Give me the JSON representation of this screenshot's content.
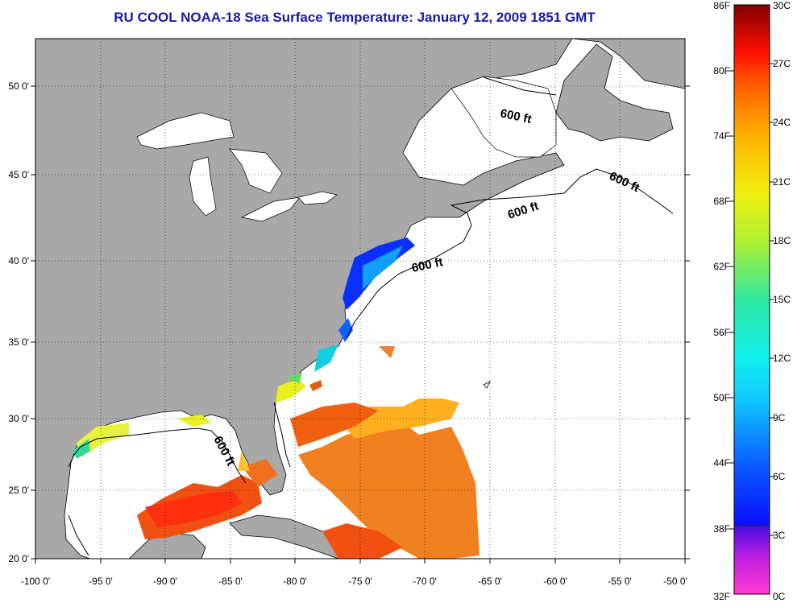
{
  "title": "RU COOL  NOAA-18  Sea Surface Temperature:  January 12, 2009 1851 GMT",
  "latitude_labels": [
    "50 0'",
    "45 0'",
    "40 0'",
    "35 0'",
    "30 0'",
    "25 0'",
    "20 0'"
  ],
  "longitude_labels": [
    "-100 0'",
    "-95 0'",
    "-90 0'",
    "-85 0'",
    "-80 0'",
    "-75 0'",
    "-70 0'",
    "-65 0'",
    "-60 0'",
    "-55 0'",
    "-50 0'"
  ],
  "isobath_labels": [
    "600 ft",
    "600 ft",
    "600 ft",
    "600 ft",
    "600 ft"
  ],
  "colorbar": {
    "fahrenheit_labels": [
      "86F",
      "80F",
      "74F",
      "68F",
      "62F",
      "56F",
      "50F",
      "44F",
      "38F",
      "32F"
    ],
    "celsius_labels": [
      "30C",
      "27C",
      "24C",
      "21C",
      "18C",
      "15C",
      "12C",
      "9C",
      "6C",
      "3C",
      "0C"
    ]
  },
  "colors": {
    "land": "#a8a8a8",
    "title": "#1a1aa8",
    "no_data": "#ffffff"
  }
}
